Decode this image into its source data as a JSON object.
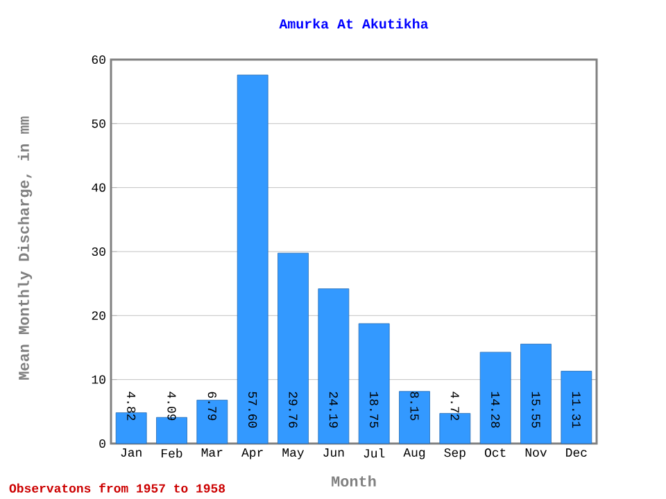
{
  "chart_data": {
    "type": "bar",
    "title": "Amurka At Akutikha",
    "xlabel": "Month",
    "ylabel": "Mean Monthly Discharge, in mm",
    "categories": [
      "Jan",
      "Feb",
      "Mar",
      "Apr",
      "May",
      "Jun",
      "Jul",
      "Aug",
      "Sep",
      "Oct",
      "Nov",
      "Dec"
    ],
    "values": [
      4.82,
      4.09,
      6.79,
      57.6,
      29.76,
      24.19,
      18.75,
      8.15,
      4.72,
      14.28,
      15.55,
      11.31
    ],
    "value_labels": [
      "4.82",
      "4.09",
      "6.79",
      "57.60",
      "29.76",
      "24.19",
      "18.75",
      "8.15",
      "4.72",
      "14.28",
      "15.55",
      "11.31"
    ],
    "color": "#3399ff",
    "ylim": [
      0,
      60
    ],
    "yticks": [
      0,
      10,
      20,
      30,
      40,
      50,
      60
    ],
    "grid": "y",
    "annotations": [
      "Observatons from 1957 to 1958"
    ]
  }
}
